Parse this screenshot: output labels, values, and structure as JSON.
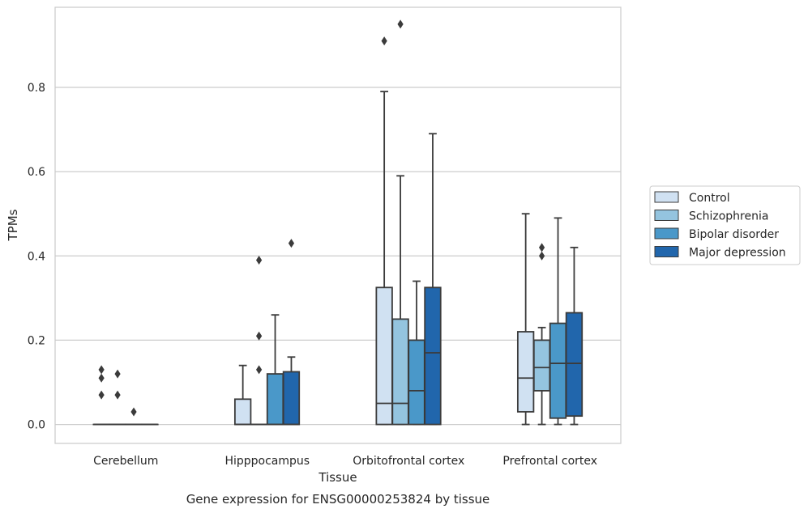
{
  "chart_data": {
    "type": "box",
    "title": "",
    "caption": "Gene expression for ENSG00000253824 by tissue",
    "xlabel": "Tissue",
    "ylabel": "TPMs",
    "ylim": [
      -0.045,
      0.99
    ],
    "yticks": [
      0.0,
      0.2,
      0.4,
      0.6,
      0.8
    ],
    "ytick_labels": [
      "0.0",
      "0.2",
      "0.4",
      "0.6",
      "0.8"
    ],
    "grid": "horizontal",
    "legend_position": "right",
    "categories": [
      "Cerebellum",
      "Hipppocampus",
      "Orbitofrontal cortex",
      "Prefrontal cortex"
    ],
    "series": [
      {
        "name": "Control",
        "color": "#d0e1f2",
        "boxes": [
          {
            "whislo": 0.0,
            "q1": 0.0,
            "med": 0.0,
            "q3": 0.0,
            "whishi": 0.0,
            "fliers": [
              0.13,
              0.11,
              0.07
            ]
          },
          {
            "whislo": 0.0,
            "q1": 0.0,
            "med": 0.0,
            "q3": 0.06,
            "whishi": 0.14,
            "fliers": []
          },
          {
            "whislo": 0.0,
            "q1": 0.0,
            "med": 0.05,
            "q3": 0.325,
            "whishi": 0.79,
            "fliers": [
              0.91
            ]
          },
          {
            "whislo": 0.0,
            "q1": 0.03,
            "med": 0.11,
            "q3": 0.22,
            "whishi": 0.5,
            "fliers": []
          }
        ]
      },
      {
        "name": "Schizophrenia",
        "color": "#94c4df",
        "boxes": [
          {
            "whislo": 0.0,
            "q1": 0.0,
            "med": 0.0,
            "q3": 0.0,
            "whishi": 0.0,
            "fliers": [
              0.12,
              0.07
            ]
          },
          {
            "whislo": 0.0,
            "q1": 0.0,
            "med": 0.0,
            "q3": 0.0,
            "whishi": 0.0,
            "fliers": [
              0.39,
              0.21,
              0.13
            ]
          },
          {
            "whislo": 0.0,
            "q1": 0.0,
            "med": 0.05,
            "q3": 0.25,
            "whishi": 0.59,
            "fliers": [
              0.95
            ]
          },
          {
            "whislo": 0.0,
            "q1": 0.08,
            "med": 0.135,
            "q3": 0.2,
            "whishi": 0.23,
            "fliers": [
              0.42,
              0.4
            ]
          }
        ]
      },
      {
        "name": "Bipolar disorder",
        "color": "#4a98c9",
        "boxes": [
          {
            "whislo": 0.0,
            "q1": 0.0,
            "med": 0.0,
            "q3": 0.0,
            "whishi": 0.0,
            "fliers": [
              0.03
            ]
          },
          {
            "whislo": 0.0,
            "q1": 0.0,
            "med": 0.0,
            "q3": 0.12,
            "whishi": 0.26,
            "fliers": []
          },
          {
            "whislo": 0.0,
            "q1": 0.0,
            "med": 0.08,
            "q3": 0.2,
            "whishi": 0.34,
            "fliers": []
          },
          {
            "whislo": 0.0,
            "q1": 0.015,
            "med": 0.145,
            "q3": 0.24,
            "whishi": 0.49,
            "fliers": []
          }
        ]
      },
      {
        "name": "Major depression",
        "color": "#2166ac",
        "boxes": [
          {
            "whislo": 0.0,
            "q1": 0.0,
            "med": 0.0,
            "q3": 0.0,
            "whishi": 0.0,
            "fliers": []
          },
          {
            "whislo": 0.0,
            "q1": 0.0,
            "med": 0.0,
            "q3": 0.125,
            "whishi": 0.16,
            "fliers": [
              0.43
            ]
          },
          {
            "whislo": 0.0,
            "q1": 0.0,
            "med": 0.17,
            "q3": 0.325,
            "whishi": 0.69,
            "fliers": []
          },
          {
            "whislo": 0.0,
            "q1": 0.02,
            "med": 0.145,
            "q3": 0.265,
            "whishi": 0.42,
            "fliers": []
          }
        ]
      }
    ]
  }
}
